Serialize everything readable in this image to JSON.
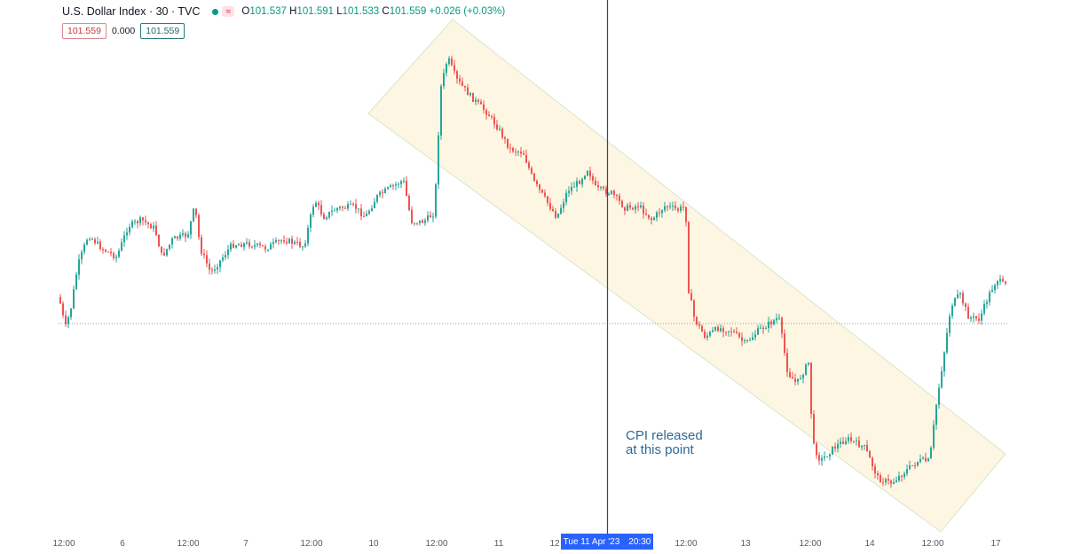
{
  "header": {
    "symbol_title": "U.S. Dollar Index · 30 · TVC",
    "indicator_glyph": "≈",
    "ohlc": {
      "open_label": "O",
      "open": "101.537",
      "high_label": "H",
      "high": "101.591",
      "low_label": "L",
      "low": "101.533",
      "close_label": "C",
      "close": "101.559",
      "change": "+0.026 (+0.03%)"
    },
    "bid": "101.559",
    "spread": "0.000",
    "ask": "101.559"
  },
  "annotation": {
    "line1": "CPI released",
    "line2": "at this point"
  },
  "crosshair_badge": {
    "date": "Tue 11 Apr '23",
    "time": "20:30"
  },
  "chart_data": {
    "type": "candlestick",
    "x_ticks": [
      "12:00",
      "6",
      "12:00",
      "7",
      "12:00",
      "10",
      "12:00",
      "11",
      "12",
      "12:00",
      "13",
      "12:00",
      "14",
      "12:00",
      "17"
    ],
    "last_price": 101.559,
    "colors": {
      "up": "#26a69a",
      "down": "#ef5350",
      "channel": "#fdf6e3",
      "crosshair": "#1f4e79",
      "badge": "#2962ff"
    },
    "channel": "descending parallel channel from the Apr 10 12:00 high to the Apr 14 low",
    "grid": false
  }
}
